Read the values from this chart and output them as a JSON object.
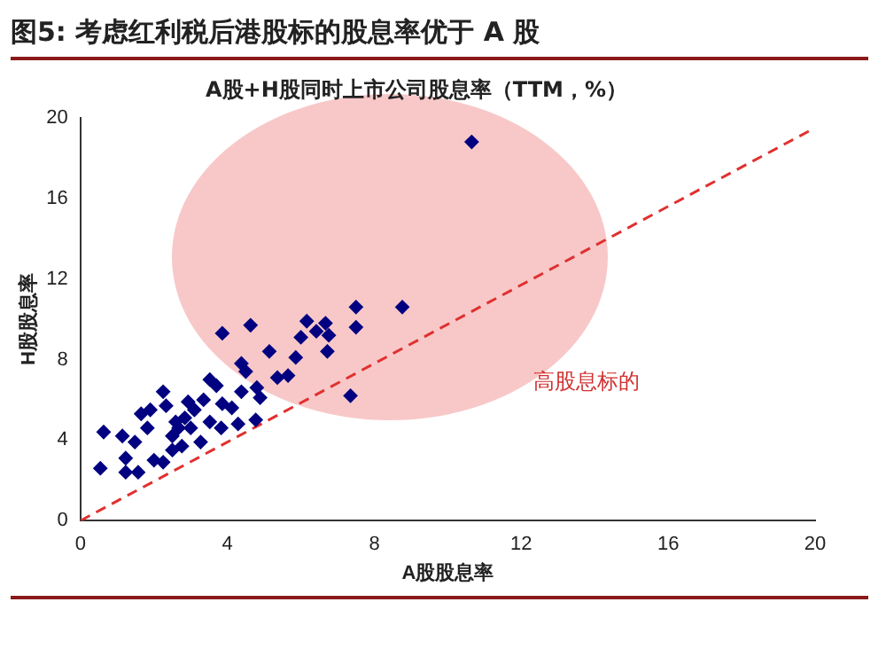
{
  "chart_data": {
    "type": "scatter",
    "title": "图5: 考虑红利税后港股标的股息率优于 A 股",
    "subtitle": "A股+H股同时上市公司股息率（TTM，%）",
    "xlabel": "A股股息率",
    "ylabel": "H股股息率",
    "annotations": [
      "高股息标的"
    ],
    "xlim": [
      0,
      20
    ],
    "ylim": [
      0,
      20
    ],
    "xticks": [
      0,
      4,
      8,
      12,
      16,
      20
    ],
    "yticks": [
      0,
      4,
      8,
      12,
      16,
      20
    ],
    "grid": false,
    "legend": false,
    "series": [
      {
        "type": "scatter",
        "color": "#000080",
        "marker": "diamond",
        "x": [
          10.65,
          7.35,
          8.76,
          7.5,
          7.5,
          3.86,
          4.63,
          6.16,
          6.67,
          6.76,
          6.42,
          6.0,
          5.86,
          5.14,
          6.72,
          4.38,
          4.5,
          5.36,
          5.65,
          4.8,
          4.89,
          4.77,
          4.29,
          4.38,
          3.52,
          3.7,
          3.86,
          3.83,
          3.27,
          3.35,
          3.1,
          2.84,
          2.67,
          2.5,
          2.25,
          2.33,
          1.9,
          1.65,
          1.82,
          1.14,
          1.48,
          0.63,
          0.54,
          1.23,
          1.23,
          1.57,
          2.0,
          2.25,
          2.5,
          2.76,
          2.59,
          3.0,
          2.93,
          4.12,
          3.52
        ],
        "values": [
          18.8,
          6.2,
          10.6,
          10.6,
          9.6,
          9.3,
          9.7,
          9.9,
          9.8,
          9.2,
          9.4,
          9.1,
          8.1,
          8.4,
          8.4,
          7.8,
          7.4,
          7.1,
          7.2,
          6.6,
          6.1,
          5.0,
          4.8,
          6.4,
          7.0,
          6.7,
          5.8,
          4.6,
          3.9,
          6.0,
          5.5,
          5.1,
          4.6,
          4.2,
          6.4,
          5.7,
          5.5,
          5.3,
          4.6,
          4.2,
          3.9,
          4.4,
          2.6,
          3.1,
          2.4,
          2.4,
          3.0,
          2.9,
          3.5,
          3.7,
          4.9,
          4.6,
          5.9,
          5.6,
          4.9
        ]
      },
      {
        "type": "line",
        "color": "#e03030",
        "line_style": "dashed",
        "marker": "none",
        "x": [
          0,
          20
        ],
        "values": [
          0,
          19.5
        ]
      }
    ]
  }
}
